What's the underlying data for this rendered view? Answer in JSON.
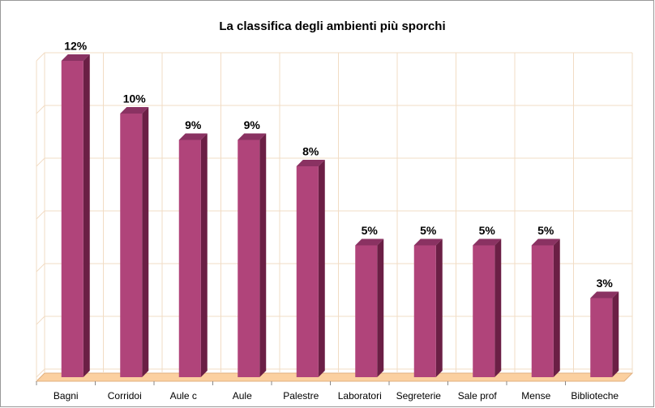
{
  "chart_data": {
    "type": "bar3d",
    "title": "La classifica degli ambienti più sporchi",
    "categories": [
      "Bagni",
      "Corridoi",
      "Aule c",
      "Aule",
      "Palestre",
      "Laboratori",
      "Segreterie",
      "Sale prof",
      "Mense",
      "Biblioteche"
    ],
    "values": [
      12,
      10,
      9,
      9,
      8,
      5,
      5,
      5,
      5,
      3
    ],
    "value_labels": [
      "12%",
      "10%",
      "9%",
      "9%",
      "8%",
      "5%",
      "5%",
      "5%",
      "5%",
      "3%"
    ],
    "color": "#b0447a",
    "ylim": [
      0,
      12
    ],
    "yticks": [
      0,
      2,
      4,
      6,
      8,
      10,
      12
    ],
    "grid": true
  }
}
